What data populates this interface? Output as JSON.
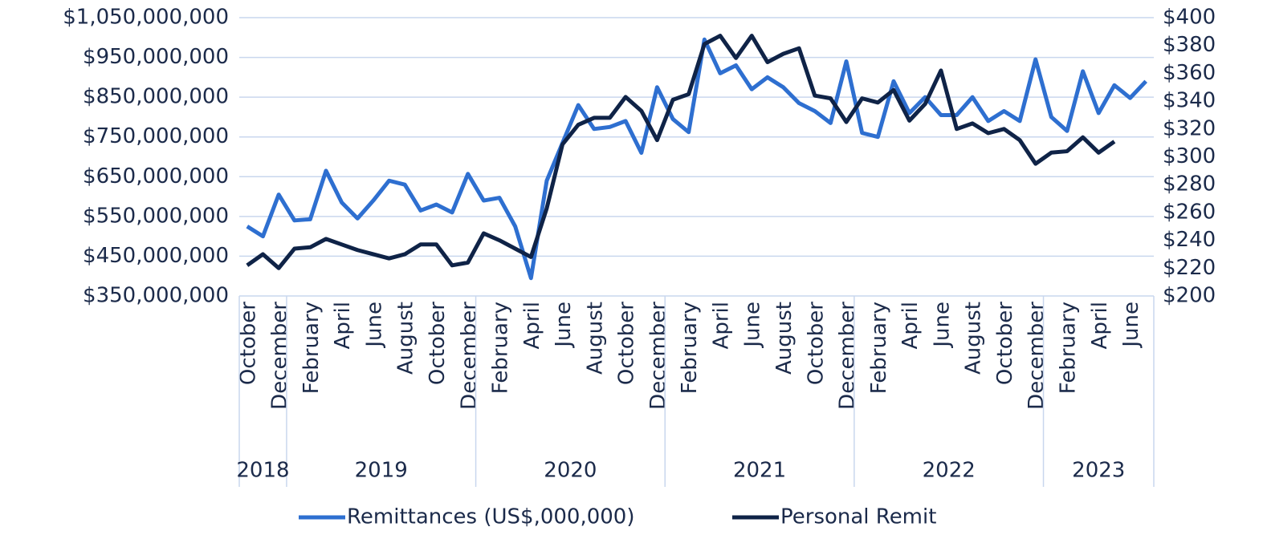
{
  "chart_data": {
    "type": "line",
    "categories": [
      "October",
      null,
      "December",
      null,
      "February",
      null,
      "April",
      null,
      "June",
      null,
      "August",
      null,
      "October",
      null,
      "December",
      null,
      "February",
      null,
      "April",
      null,
      "June",
      null,
      "August",
      null,
      "October",
      null,
      "December",
      null,
      "February",
      null,
      "April",
      null,
      "June",
      null,
      "August",
      null,
      "October",
      null,
      "December",
      null,
      "February",
      null,
      "April",
      null,
      "June",
      null,
      "August",
      null,
      "October",
      null,
      "December",
      null,
      "February",
      null,
      "April",
      null,
      "June",
      null
    ],
    "groups": [
      {
        "label": "2018",
        "size": 3
      },
      {
        "label": "2019",
        "size": 12
      },
      {
        "label": "2020",
        "size": 12
      },
      {
        "label": "2021",
        "size": 12
      },
      {
        "label": "2022",
        "size": 12
      },
      {
        "label": "2023",
        "size": 7
      }
    ],
    "series": [
      {
        "name": "Remittances (US$,000,000)",
        "color": "#2e6fd0",
        "axis": "y",
        "values": [
          525000000,
          500000000,
          605000000,
          540000000,
          543000000,
          665000000,
          585000000,
          545000000,
          590000000,
          640000000,
          630000000,
          565000000,
          580000000,
          560000000,
          657000000,
          590000000,
          597000000,
          525000000,
          395000000,
          640000000,
          735000000,
          830000000,
          770000000,
          775000000,
          790000000,
          710000000,
          875000000,
          795000000,
          762000000,
          995000000,
          910000000,
          930000000,
          870000000,
          900000000,
          875000000,
          835000000,
          815000000,
          785000000,
          940000000,
          760000000,
          750000000,
          890000000,
          810000000,
          850000000,
          805000000,
          805000000,
          850000000,
          790000000,
          815000000,
          790000000,
          945000000,
          800000000,
          765000000,
          915000000,
          810000000,
          880000000,
          848000000,
          890000000
        ]
      },
      {
        "name": "Personal Remit",
        "color": "#0f2347",
        "axis": "y2",
        "values": [
          222,
          230,
          220,
          234,
          235,
          241,
          237,
          233,
          230,
          227,
          230,
          237,
          237,
          222,
          224,
          245,
          240,
          234,
          228,
          263,
          309,
          323,
          328,
          328,
          343,
          333,
          312,
          341,
          345,
          381,
          387,
          371,
          387,
          368,
          374,
          378,
          344,
          342,
          325,
          342,
          339,
          348,
          326,
          338,
          362,
          320,
          324,
          317,
          320,
          312,
          295,
          303,
          304,
          314,
          303,
          311,
          null,
          null
        ]
      }
    ],
    "ylim": [
      350000000,
      1050000000
    ],
    "yticks": [
      {
        "value": 350000000,
        "label": "$350,000,000"
      },
      {
        "value": 450000000,
        "label": "$450,000,000"
      },
      {
        "value": 550000000,
        "label": "$550,000,000"
      },
      {
        "value": 650000000,
        "label": "$650,000,000"
      },
      {
        "value": 750000000,
        "label": "$750,000,000"
      },
      {
        "value": 850000000,
        "label": "$850,000,000"
      },
      {
        "value": 950000000,
        "label": "$950,000,000"
      },
      {
        "value": 1050000000,
        "label": "$1,050,000,000"
      }
    ],
    "y2lim": [
      200,
      400
    ],
    "y2ticks": [
      {
        "value": 200,
        "label": "$200"
      },
      {
        "value": 220,
        "label": "$220"
      },
      {
        "value": 240,
        "label": "$240"
      },
      {
        "value": 260,
        "label": "$260"
      },
      {
        "value": 280,
        "label": "$280"
      },
      {
        "value": 300,
        "label": "$300"
      },
      {
        "value": 320,
        "label": "$320"
      },
      {
        "value": 340,
        "label": "$340"
      },
      {
        "value": 360,
        "label": "$360"
      },
      {
        "value": 380,
        "label": "$380"
      },
      {
        "value": 400,
        "label": "$400"
      }
    ],
    "grid": true,
    "legend": "bottom"
  }
}
